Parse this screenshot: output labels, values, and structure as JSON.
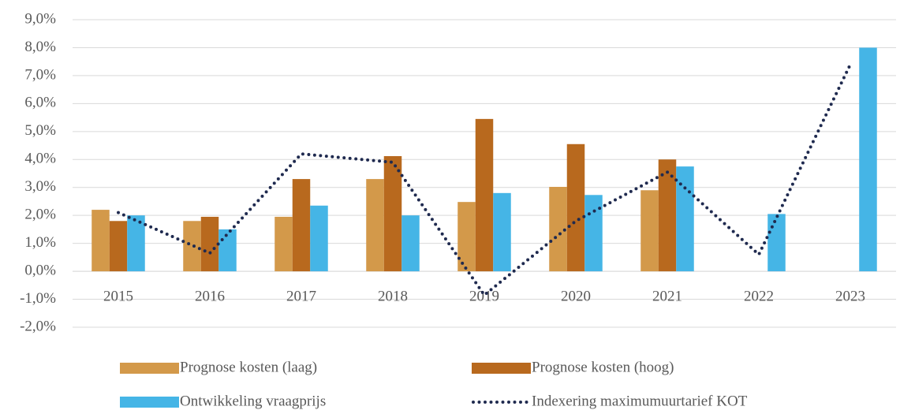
{
  "chart_data": {
    "type": "bar",
    "categories": [
      "2015",
      "2016",
      "2017",
      "2018",
      "2019",
      "2020",
      "2021",
      "2022",
      "2023"
    ],
    "series": [
      {
        "name": "Prognose kosten (laag)",
        "color": "#D3994A",
        "values": [
          2.2,
          1.8,
          1.95,
          3.3,
          2.48,
          3.02,
          2.9,
          null,
          null
        ]
      },
      {
        "name": "Prognose kosten (hoog)",
        "color": "#B8691E",
        "values": [
          1.8,
          1.95,
          3.3,
          4.12,
          5.45,
          4.55,
          4.0,
          null,
          null
        ]
      },
      {
        "name": "Ontwikkeling vraagprijs",
        "color": "#45B5E6",
        "values": [
          2.0,
          1.5,
          2.35,
          2.0,
          2.8,
          2.73,
          3.75,
          2.05,
          8.0
        ]
      },
      {
        "name": "Indexering maximumuurtarief KOT",
        "color": "#1F2A4F",
        "type": "line",
        "style": "dotted",
        "values": [
          2.1,
          0.65,
          4.2,
          3.9,
          -0.85,
          1.8,
          3.55,
          0.6,
          7.4
        ]
      }
    ],
    "ylim": [
      -2,
      9
    ],
    "yticks": [
      {
        "value": -2,
        "label": "-2,0%"
      },
      {
        "value": -1,
        "label": "-1,0%"
      },
      {
        "value": 0,
        "label": "0,0%"
      },
      {
        "value": 1,
        "label": "1,0%"
      },
      {
        "value": 2,
        "label": "2,0%"
      },
      {
        "value": 3,
        "label": "3,0%"
      },
      {
        "value": 4,
        "label": "4,0%"
      },
      {
        "value": 5,
        "label": "5,0%"
      },
      {
        "value": 6,
        "label": "6,0%"
      },
      {
        "value": 7,
        "label": "7,0%"
      },
      {
        "value": 8,
        "label": "8,0%"
      },
      {
        "value": 9,
        "label": "9,0%"
      }
    ],
    "grid": true,
    "legend": "bottom"
  }
}
